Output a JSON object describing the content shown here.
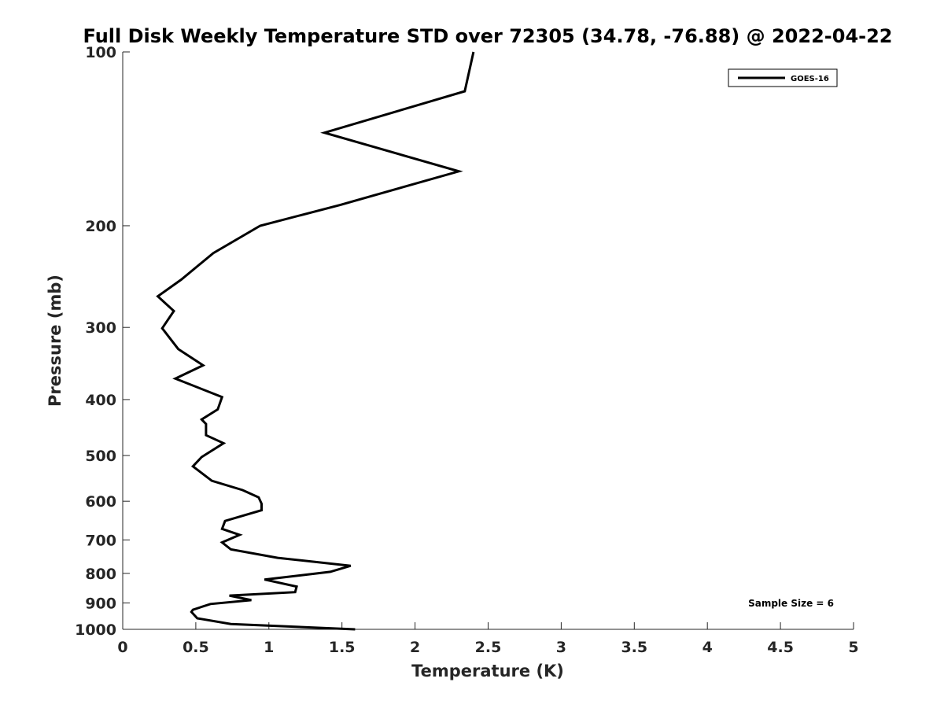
{
  "chart_data": {
    "type": "line",
    "title": "Full Disk Weekly Temperature STD over 72305 (34.78, -76.88) @ 2022-04-22",
    "xlabel": "Temperature (K)",
    "ylabel": "Pressure (mb)",
    "xlim": [
      0,
      5
    ],
    "ylim": [
      100,
      1000
    ],
    "y_scale": "log",
    "y_reversed": true,
    "x_ticks": [
      0,
      0.5,
      1,
      1.5,
      2,
      2.5,
      3,
      3.5,
      4,
      4.5,
      5
    ],
    "x_tick_labels": [
      "0",
      "0.5",
      "1",
      "1.5",
      "2",
      "2.5",
      "3",
      "3.5",
      "4",
      "4.5",
      "5"
    ],
    "y_ticks": [
      100,
      200,
      300,
      400,
      500,
      600,
      700,
      800,
      900,
      1000
    ],
    "y_tick_labels": [
      "100",
      "200",
      "300",
      "400",
      "500",
      "600",
      "700",
      "800",
      "900",
      "1000"
    ],
    "grid": false,
    "legend_position": "top-right",
    "annotation": "Sample Size = 6",
    "series": [
      {
        "name": "GOES-16",
        "color": "#000000",
        "points": [
          [
            2.4,
            100
          ],
          [
            2.34,
            117
          ],
          [
            1.38,
            138
          ],
          [
            2.3,
            161
          ],
          [
            1.49,
            184
          ],
          [
            0.94,
            200
          ],
          [
            0.62,
            223
          ],
          [
            0.4,
            248
          ],
          [
            0.24,
            265
          ],
          [
            0.35,
            281
          ],
          [
            0.27,
            301
          ],
          [
            0.38,
            327
          ],
          [
            0.55,
            349
          ],
          [
            0.36,
            368
          ],
          [
            0.68,
            396
          ],
          [
            0.65,
            416
          ],
          [
            0.54,
            433
          ],
          [
            0.57,
            441
          ],
          [
            0.57,
            461
          ],
          [
            0.69,
            476
          ],
          [
            0.54,
            503
          ],
          [
            0.48,
            522
          ],
          [
            0.61,
            553
          ],
          [
            0.82,
            574
          ],
          [
            0.93,
            591
          ],
          [
            0.95,
            606
          ],
          [
            0.95,
            622
          ],
          [
            0.7,
            649
          ],
          [
            0.68,
            670
          ],
          [
            0.8,
            686
          ],
          [
            0.68,
            707
          ],
          [
            0.74,
            727
          ],
          [
            1.06,
            752
          ],
          [
            1.56,
            776
          ],
          [
            1.42,
            795
          ],
          [
            0.97,
            820
          ],
          [
            1.19,
            843
          ],
          [
            1.18,
            862
          ],
          [
            0.73,
            874
          ],
          [
            0.88,
            890
          ],
          [
            0.6,
            904
          ],
          [
            0.48,
            925
          ],
          [
            0.47,
            933
          ],
          [
            0.51,
            957
          ],
          [
            0.74,
            979
          ],
          [
            1.59,
            1000
          ]
        ]
      }
    ]
  }
}
